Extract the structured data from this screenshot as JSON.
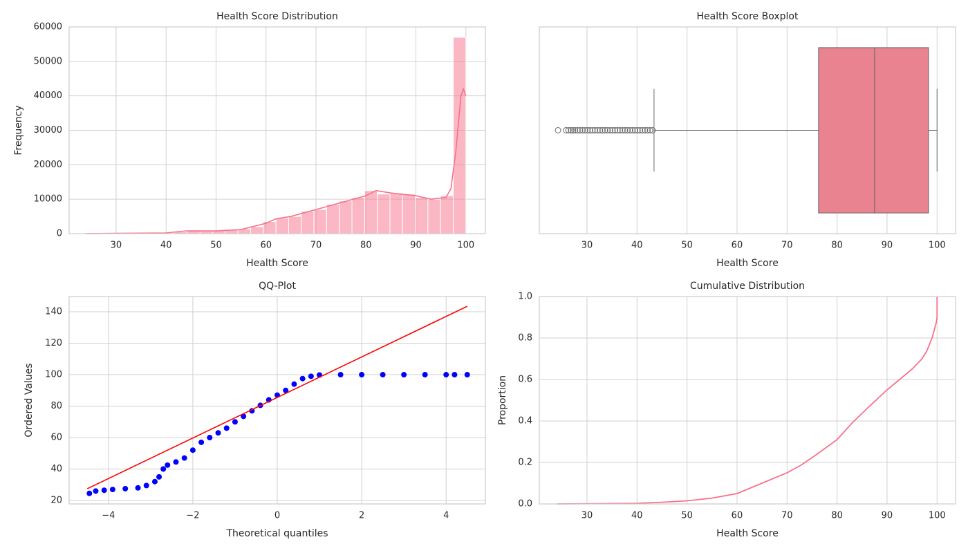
{
  "chart_data": [
    {
      "type": "histogram",
      "title": "Health Score Distribution",
      "xlabel": "Health Score",
      "ylabel": "Frequency",
      "bins": [
        24,
        26.53,
        29.07,
        31.6,
        34.13,
        36.67,
        39.2,
        41.73,
        44.27,
        46.8,
        49.33,
        51.87,
        54.4,
        56.93,
        59.47,
        62,
        64.53,
        67.07,
        69.6,
        72.13,
        74.67,
        77.2,
        79.73,
        82.27,
        84.8,
        87.33,
        89.87,
        92.4,
        94.93,
        97.47,
        100
      ],
      "values": [
        50,
        100,
        150,
        150,
        100,
        100,
        200,
        500,
        800,
        700,
        900,
        1200,
        1400,
        2000,
        3500,
        4500,
        5000,
        6500,
        7000,
        8500,
        9500,
        10500,
        12500,
        11500,
        11800,
        11500,
        10500,
        10000,
        11000,
        57000
      ],
      "color": "#f77189",
      "kde": {
        "x": [
          24,
          30,
          40,
          44,
          50,
          55,
          60,
          62,
          65,
          70,
          75,
          80,
          82,
          85,
          90,
          93,
          96,
          97,
          98,
          99,
          99.5,
          100
        ],
        "values": [
          0,
          100,
          200,
          800,
          800,
          1200,
          3000,
          4300,
          5000,
          7000,
          9000,
          11000,
          12500,
          11800,
          11000,
          10000,
          10500,
          13000,
          24000,
          40000,
          42000,
          40000
        ]
      },
      "xlim": [
        20.6,
        103.9
      ],
      "ylim": [
        0,
        60000
      ],
      "xticks": [
        30,
        40,
        50,
        60,
        70,
        80,
        90,
        100
      ],
      "yticks": [
        0,
        10000,
        20000,
        30000,
        40000,
        50000,
        60000
      ],
      "grid": true
    },
    {
      "type": "box",
      "title": "Health Score Boxplot",
      "xlabel": "Health Score",
      "stats": {
        "whislo": 43.4,
        "q1": 76.3,
        "med": 87.5,
        "q3": 98.3,
        "whishi": 100
      },
      "fliers": [
        24.2,
        25.8,
        26.3,
        26.8,
        27.2,
        27.6,
        28.1,
        28.6,
        29.1,
        29.6,
        30.1,
        30.6,
        31.1,
        31.6,
        32.1,
        32.6,
        33.1,
        33.6,
        34.1,
        34.6,
        35.1,
        35.6,
        36.1,
        36.6,
        37.1,
        37.6,
        38.1,
        38.6,
        39.1,
        39.6,
        40.1,
        40.6,
        41.1,
        41.6,
        42.1,
        42.6,
        43.1
      ],
      "color": "#e8838f",
      "xlim": [
        20.46,
        103.7
      ],
      "xticks": [
        30,
        40,
        50,
        60,
        70,
        80,
        90,
        100
      ],
      "grid": true
    },
    {
      "type": "qq",
      "title": "QQ-Plot",
      "xlabel": "Theoretical quantiles",
      "ylabel": "Ordered Values",
      "points": {
        "color": "#0000ff",
        "x": [
          -4.45,
          -4.3,
          -4.1,
          -3.9,
          -3.6,
          -3.3,
          -3.1,
          -2.9,
          -2.8,
          -2.7,
          -2.6,
          -2.4,
          -2.2,
          -2.0,
          -1.8,
          -1.6,
          -1.4,
          -1.2,
          -1.0,
          -0.8,
          -0.6,
          -0.4,
          -0.2,
          0,
          0.2,
          0.4,
          0.6,
          0.8,
          1.0,
          1.5,
          2,
          2.5,
          3,
          3.5,
          4,
          4.2,
          4.5
        ],
        "values": [
          24.5,
          26,
          26.5,
          27,
          27.5,
          28,
          29.5,
          32,
          35,
          40,
          42.5,
          44.5,
          47,
          52,
          57,
          60,
          63,
          66,
          70,
          73.5,
          77,
          80.5,
          84,
          87,
          90,
          94,
          97.5,
          99,
          99.8,
          100,
          100,
          100,
          100,
          100,
          100,
          100,
          100
        ]
      },
      "fit": {
        "color": "#ff0000",
        "x": [
          -4.5,
          4.5
        ],
        "values": [
          27.5,
          143.5
        ]
      },
      "xlim": [
        -4.93,
        4.93
      ],
      "ylim": [
        17.8,
        149.7
      ],
      "xticks": [
        {
          "value": -4,
          "label": "−4"
        },
        {
          "value": -2,
          "label": "−2"
        },
        0,
        2,
        4
      ],
      "yticks": [
        20,
        40,
        60,
        80,
        100,
        120,
        140
      ],
      "grid": true
    },
    {
      "type": "line",
      "title": "Cumulative Distribution",
      "xlabel": "Health Score",
      "ylabel": "Proportion",
      "x": [
        24,
        40,
        45,
        50,
        55,
        60,
        62,
        65,
        70,
        73,
        76,
        80,
        83,
        86,
        90,
        93,
        95,
        97,
        98,
        99,
        99.8,
        100,
        100
      ],
      "values": [
        0,
        0.003,
        0.008,
        0.015,
        0.028,
        0.05,
        0.07,
        0.1,
        0.15,
        0.19,
        0.24,
        0.31,
        0.39,
        0.46,
        0.55,
        0.61,
        0.65,
        0.7,
        0.74,
        0.8,
        0.87,
        0.9,
        1.0
      ],
      "color": "#f77189",
      "xlim": [
        20.46,
        103.7
      ],
      "ylim": [
        0,
        1
      ],
      "xticks": [
        30,
        40,
        50,
        60,
        70,
        80,
        90,
        100
      ],
      "yticks": [
        {
          "value": 0,
          "label": "0.0"
        },
        0.2,
        0.4,
        0.6,
        0.8,
        {
          "value": 1,
          "label": "1.0"
        }
      ],
      "grid": true
    }
  ]
}
